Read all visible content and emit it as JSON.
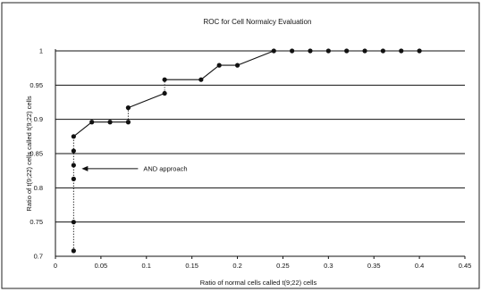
{
  "chart_data": {
    "type": "line",
    "title": "ROC for Cell Normalcy Evaluation",
    "xlabel": "Ratio of normal cells called t(9;22) cells",
    "ylabel": "Ratio of t(9;22) cells called t(9;22) cells",
    "xlim": [
      0,
      0.45
    ],
    "ylim": [
      0.7,
      1
    ],
    "x_ticks": [
      "0",
      "0.05",
      "0.1",
      "0.15",
      "0.2",
      "0.25",
      "0.3",
      "0.35",
      "0.4",
      "0.45"
    ],
    "y_ticks": [
      "0.7",
      "0.75",
      "0.8",
      "0.85",
      "0.9",
      "0.95",
      "1"
    ],
    "grid": "horizontal",
    "series": [
      {
        "x": [
          0.02,
          0.02,
          0.02,
          0.02,
          0.02,
          0.02,
          0.04,
          0.06,
          0.08,
          0.08,
          0.12,
          0.12,
          0.16,
          0.18,
          0.2,
          0.24,
          0.26,
          0.28,
          0.3,
          0.32,
          0.34,
          0.36,
          0.38,
          0.4
        ],
        "y": [
          0.708,
          0.75,
          0.813,
          0.833,
          0.854,
          0.875,
          0.896,
          0.896,
          0.896,
          0.917,
          0.938,
          0.958,
          0.958,
          0.979,
          0.979,
          1,
          1,
          1,
          1,
          1,
          1,
          1,
          1,
          1
        ]
      }
    ],
    "dotted_segments": [
      {
        "x": [
          0.02,
          0.02
        ],
        "y": [
          0.708,
          0.875
        ]
      },
      {
        "x": [
          0.08,
          0.08
        ],
        "y": [
          0.896,
          0.917
        ]
      },
      {
        "x": [
          0.12,
          0.12
        ],
        "y": [
          0.938,
          0.958
        ]
      }
    ],
    "annotations": [
      {
        "text": "AND approach",
        "x": 0.02,
        "y": 0.828,
        "arrow": "left"
      }
    ],
    "colors": {
      "line": "#111111",
      "marker": "#111111",
      "grid": "#111111"
    }
  }
}
